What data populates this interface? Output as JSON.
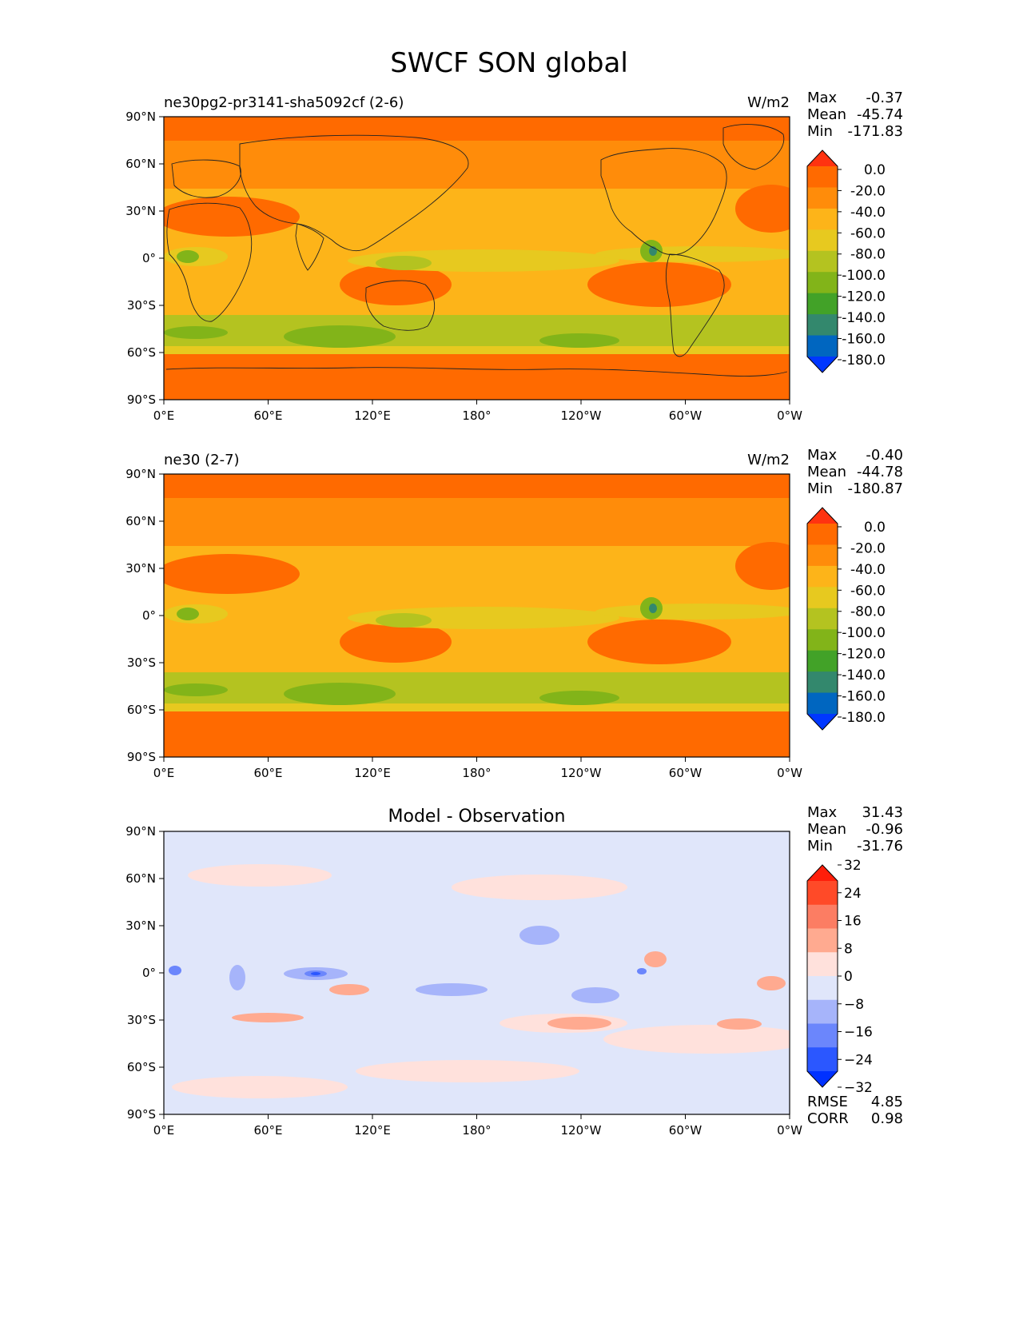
{
  "title": "SWCF SON global",
  "panels": [
    {
      "id": "test",
      "left_title": "ne30pg2-pr3141-sha5092cf (2-6)",
      "center_title": "",
      "units": "W/m2",
      "stats": [
        {
          "label": "Max",
          "value": "-0.37"
        },
        {
          "label": "Mean",
          "value": "-45.74"
        },
        {
          "label": "Min",
          "value": "-171.83"
        }
      ],
      "colorbar": {
        "type": "abs",
        "ticks": [
          "0.0",
          "-20.0",
          "-40.0",
          "-60.0",
          "-80.0",
          "-100.0",
          "-120.0",
          "-140.0",
          "-160.0",
          "-180.0"
        ],
        "colors": [
          "#ff3310",
          "#ff6a00",
          "#ff8c0a",
          "#fdb419",
          "#e7c91f",
          "#b4c320",
          "#82b419",
          "#42a228",
          "#33886d",
          "#0066c0",
          "#0037ff"
        ]
      },
      "extra_stats": []
    },
    {
      "id": "ref",
      "left_title": "ne30 (2-7)",
      "center_title": "",
      "units": "W/m2",
      "stats": [
        {
          "label": "Max",
          "value": "-0.40"
        },
        {
          "label": "Mean",
          "value": "-44.78"
        },
        {
          "label": "Min",
          "value": "-180.87"
        }
      ],
      "colorbar": {
        "type": "abs",
        "ticks": [
          "0.0",
          "-20.0",
          "-40.0",
          "-60.0",
          "-80.0",
          "-100.0",
          "-120.0",
          "-140.0",
          "-160.0",
          "-180.0"
        ],
        "colors": [
          "#ff3310",
          "#ff6a00",
          "#ff8c0a",
          "#fdb419",
          "#e7c91f",
          "#b4c320",
          "#82b419",
          "#42a228",
          "#33886d",
          "#0066c0",
          "#0037ff"
        ]
      },
      "extra_stats": []
    },
    {
      "id": "diff",
      "left_title": "",
      "center_title": "Model - Observation",
      "units": "",
      "stats": [
        {
          "label": "Max",
          "value": "31.43"
        },
        {
          "label": "Mean",
          "value": "-0.96"
        },
        {
          "label": "Min",
          "value": "-31.76"
        }
      ],
      "colorbar": {
        "type": "diff",
        "ticks": [
          "32",
          "24",
          "16",
          "8",
          "0",
          "−8",
          "−16",
          "−24",
          "−32"
        ],
        "colors": [
          "#ff1e0a",
          "#ff4a28",
          "#fc7d63",
          "#ffaa90",
          "#ffe1dc",
          "#e0e6fa",
          "#a6b4fa",
          "#6b86fc",
          "#2b57ff",
          "#0031ff"
        ]
      },
      "extra_stats": [
        {
          "label": "RMSE",
          "value": "4.85"
        },
        {
          "label": "CORR",
          "value": "0.98"
        }
      ]
    }
  ],
  "lat_ticks": [
    "90°N",
    "60°N",
    "30°N",
    "0°",
    "30°S",
    "60°S",
    "90°S"
  ],
  "lon_ticks": [
    "0°E",
    "60°E",
    "120°E",
    "180°",
    "120°W",
    "60°W",
    "0°W"
  ],
  "colors": {
    "ocean_bg_abs": "#fdb419",
    "land_outline": "#222222",
    "diff_bg": "#e0e6fa"
  }
}
